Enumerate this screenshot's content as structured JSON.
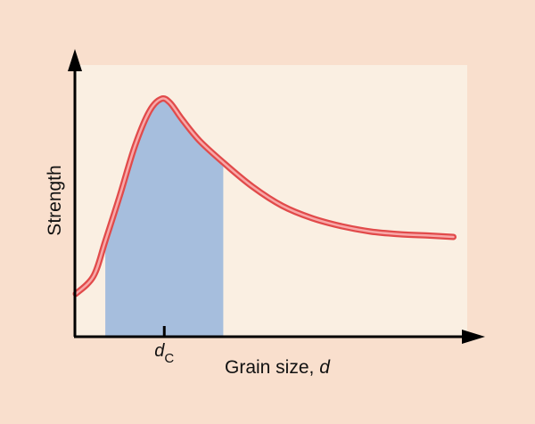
{
  "chart_data": {
    "type": "line",
    "title": "",
    "xlabel": "Grain size, ",
    "xlabel_var": "d",
    "ylabel": "Strength",
    "x_tick": {
      "label": "d",
      "subscript": "C",
      "x": 3
    },
    "xlim": [
      0,
      13.3
    ],
    "ylim": [
      0,
      100
    ],
    "shaded_region": {
      "x_start": 1,
      "x_end": 5
    },
    "series": [
      {
        "name": "",
        "points": [
          [
            0,
            15.5
          ],
          [
            0.6,
            22
          ],
          [
            1,
            35
          ],
          [
            1.5,
            52
          ],
          [
            2,
            70
          ],
          [
            2.5,
            83
          ],
          [
            2.9,
            87.5
          ],
          [
            3.2,
            86
          ],
          [
            3.6,
            80
          ],
          [
            4.2,
            72
          ],
          [
            5,
            64
          ],
          [
            6,
            55
          ],
          [
            7,
            48
          ],
          [
            8,
            43.5
          ],
          [
            9,
            40.5
          ],
          [
            10,
            38.5
          ],
          [
            11,
            37.5
          ],
          [
            12,
            37
          ],
          [
            12.8,
            36.5
          ]
        ]
      }
    ],
    "colors": {
      "page_background": "#F9DFCD",
      "plot_background": "#FAEFE2",
      "shade": "#A6BEDD",
      "curve_outer": "#E14A4A",
      "curve_inner": "#F8A8A8",
      "axis": "#000000"
    }
  }
}
